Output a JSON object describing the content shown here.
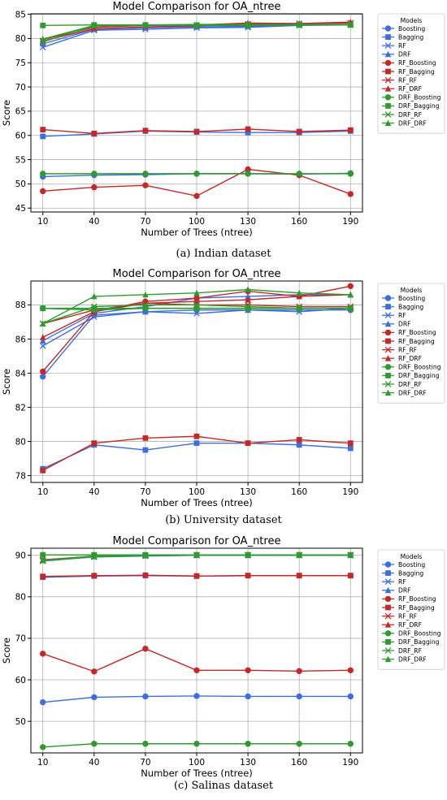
{
  "chart_data": [
    {
      "type": "line",
      "title": "Model Comparison for OA_ntree",
      "xlabel": "Number of Trees (ntree)",
      "ylabel": "Score",
      "caption": "(a) Indian dataset",
      "x": [
        10,
        40,
        70,
        100,
        130,
        160,
        190
      ],
      "ylim": [
        44.2,
        85.1
      ],
      "yticks": [
        45,
        50,
        55,
        60,
        65,
        70,
        75,
        80,
        85
      ],
      "grid": true,
      "legend_title": "Models",
      "legend_position": "outside-right",
      "series": [
        {
          "name": "Boosting",
          "values": [
            51.5,
            51.8,
            51.9,
            52.1,
            52.1,
            52.0,
            52.2
          ]
        },
        {
          "name": "Bagging",
          "values": [
            59.8,
            60.3,
            60.9,
            60.7,
            60.6,
            60.6,
            60.9
          ]
        },
        {
          "name": "RF",
          "values": [
            78.2,
            81.7,
            81.9,
            82.2,
            82.3,
            82.7,
            82.8
          ]
        },
        {
          "name": "DRF",
          "values": [
            78.9,
            81.9,
            82.2,
            82.4,
            82.5,
            82.8,
            82.9
          ]
        },
        {
          "name": "RF_Boosting",
          "values": [
            48.5,
            49.3,
            49.7,
            47.5,
            53.0,
            51.8,
            47.9
          ]
        },
        {
          "name": "RF_Bagging",
          "values": [
            61.2,
            60.4,
            61.0,
            60.8,
            61.3,
            60.8,
            61.1
          ]
        },
        {
          "name": "RF_RF",
          "values": [
            79.5,
            82.0,
            82.4,
            82.6,
            83.0,
            83.1,
            83.2
          ]
        },
        {
          "name": "RF_DRF",
          "values": [
            79.8,
            82.3,
            82.7,
            82.8,
            83.2,
            83.1,
            83.4
          ]
        },
        {
          "name": "DRF_Boosting",
          "values": [
            52.1,
            52.1,
            52.1,
            52.1,
            52.1,
            52.1,
            52.1
          ]
        },
        {
          "name": "DRF_Bagging",
          "values": [
            82.7,
            82.8,
            82.8,
            82.7,
            82.7,
            82.8,
            82.8
          ]
        },
        {
          "name": "DRF_RF",
          "values": [
            79.3,
            82.6,
            82.7,
            82.8,
            82.8,
            82.9,
            82.9
          ]
        },
        {
          "name": "DRF_DRF",
          "values": [
            79.9,
            82.7,
            82.8,
            82.9,
            82.9,
            82.9,
            82.9
          ]
        }
      ]
    },
    {
      "type": "line",
      "title": "Model Comparison for OA_ntree",
      "xlabel": "Number of Trees (ntree)",
      "ylabel": "Score",
      "caption": "(b) University dataset",
      "x": [
        10,
        40,
        70,
        100,
        130,
        160,
        190
      ],
      "ylim": [
        77.6,
        89.4
      ],
      "yticks": [
        78,
        80,
        82,
        84,
        86,
        88
      ],
      "grid": true,
      "legend_title": "Models",
      "legend_position": "outside-right",
      "series": [
        {
          "name": "Boosting",
          "values": [
            83.8,
            87.4,
            87.6,
            87.7,
            87.7,
            87.7,
            87.7
          ]
        },
        {
          "name": "Bagging",
          "values": [
            78.4,
            79.8,
            79.5,
            79.9,
            79.9,
            79.8,
            79.6
          ]
        },
        {
          "name": "RF",
          "values": [
            85.6,
            87.3,
            87.6,
            87.5,
            87.7,
            87.6,
            87.8
          ]
        },
        {
          "name": "DRF",
          "values": [
            85.9,
            87.5,
            87.9,
            88.4,
            88.5,
            88.6,
            88.6
          ]
        },
        {
          "name": "RF_Boosting",
          "values": [
            84.1,
            87.6,
            88.2,
            88.4,
            88.8,
            88.5,
            89.1
          ]
        },
        {
          "name": "RF_Bagging",
          "values": [
            78.3,
            79.9,
            80.2,
            80.3,
            79.9,
            80.1,
            79.9
          ]
        },
        {
          "name": "RF_RF",
          "values": [
            86.9,
            87.7,
            88.1,
            88.0,
            88.0,
            87.9,
            87.9
          ]
        },
        {
          "name": "RF_DRF",
          "values": [
            86.1,
            87.6,
            88.1,
            88.2,
            88.3,
            88.5,
            88.6
          ]
        },
        {
          "name": "DRF_Boosting",
          "values": [
            87.8,
            87.7,
            87.8,
            87.8,
            87.8,
            87.8,
            87.8
          ]
        },
        {
          "name": "DRF_Bagging",
          "values": [
            87.8,
            87.8,
            87.8,
            87.8,
            87.8,
            87.8,
            87.8
          ]
        },
        {
          "name": "DRF_RF",
          "values": [
            86.9,
            87.9,
            88.0,
            88.0,
            87.9,
            87.8,
            87.8
          ]
        },
        {
          "name": "DRF_DRF",
          "values": [
            86.9,
            88.5,
            88.6,
            88.7,
            88.9,
            88.7,
            88.6
          ]
        }
      ]
    },
    {
      "type": "line",
      "title": "Model Comparison for OA_ntree",
      "xlabel": "Number of Trees (ntree)",
      "ylabel": "Score",
      "caption": "(c) Salinas dataset",
      "x": [
        10,
        40,
        70,
        100,
        130,
        160,
        190
      ],
      "ylim": [
        42.4,
        91.7
      ],
      "yticks": [
        50,
        60,
        70,
        80,
        90
      ],
      "grid": true,
      "legend_title": "Models",
      "legend_position": "outside-right",
      "series": [
        {
          "name": "Boosting",
          "values": [
            54.6,
            55.8,
            56.0,
            56.1,
            56.0,
            56.0,
            56.0
          ]
        },
        {
          "name": "Bagging",
          "values": [
            84.7,
            85.0,
            85.1,
            85.0,
            85.1,
            85.1,
            85.1
          ]
        },
        {
          "name": "RF",
          "values": [
            88.6,
            89.6,
            89.8,
            90.0,
            90.0,
            90.0,
            90.0
          ]
        },
        {
          "name": "DRF",
          "values": [
            88.8,
            89.7,
            89.9,
            90.0,
            90.0,
            90.0,
            90.0
          ]
        },
        {
          "name": "RF_Boosting",
          "values": [
            66.3,
            62.0,
            67.5,
            62.3,
            62.3,
            62.1,
            62.3
          ]
        },
        {
          "name": "RF_Bagging",
          "values": [
            84.9,
            85.1,
            85.2,
            85.0,
            85.1,
            85.1,
            85.1
          ]
        },
        {
          "name": "RF_RF",
          "values": [
            88.9,
            89.7,
            90.0,
            90.1,
            90.1,
            90.1,
            90.1
          ]
        },
        {
          "name": "RF_DRF",
          "values": [
            88.9,
            89.8,
            90.0,
            90.1,
            90.1,
            90.1,
            90.1
          ]
        },
        {
          "name": "DRF_Boosting",
          "values": [
            43.8,
            44.6,
            44.6,
            44.6,
            44.6,
            44.6,
            44.6
          ]
        },
        {
          "name": "DRF_Bagging",
          "values": [
            90.1,
            90.1,
            90.1,
            90.1,
            90.1,
            90.1,
            90.1
          ]
        },
        {
          "name": "DRF_RF",
          "values": [
            88.7,
            89.6,
            89.9,
            90.0,
            90.0,
            90.0,
            90.0
          ]
        },
        {
          "name": "DRF_DRF",
          "values": [
            88.8,
            89.8,
            90.0,
            90.1,
            90.1,
            90.1,
            90.1
          ]
        }
      ]
    }
  ],
  "colors": {
    "Boosting": "#3d6ee0",
    "RF": "#c62828",
    "DRF": "#2e9b2e",
    "grid": "#b0b0b0",
    "axis": "#000000",
    "legend_border": "#cccccc"
  },
  "marker_styles": {
    "Boosting": "circle",
    "Bagging": "square",
    "RF": "x",
    "DRF": "triangle"
  }
}
